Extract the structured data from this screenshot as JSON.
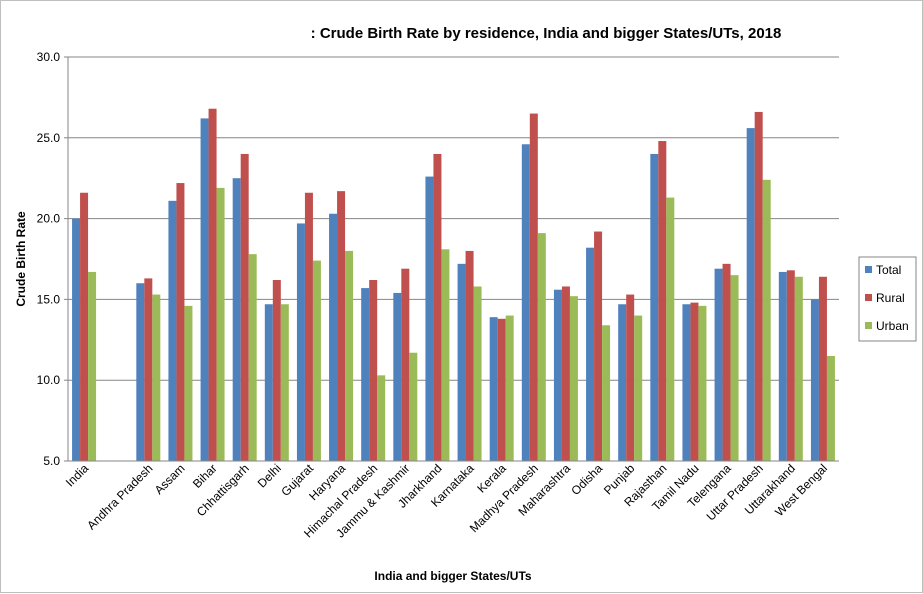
{
  "chart_data": {
    "type": "bar",
    "title": ": Crude Birth Rate by residence, India and bigger States/UTs, 2018",
    "xlabel": "India and bigger States/UTs",
    "ylabel": "Crude Birth Rate",
    "ylim": [
      5.0,
      30.0
    ],
    "yticks": [
      "5.0",
      "10.0",
      "15.0",
      "20.0",
      "25.0",
      "30.0"
    ],
    "grid": "horizontal",
    "legend_position": "right",
    "categories": [
      "India",
      "",
      "Andhra Pradesh",
      "Assam",
      "Bihar",
      "Chhattisgarh",
      "Delhi",
      "Gujarat",
      "Haryana",
      "Himachal Pradesh",
      "Jammu & Kashmir",
      "Jharkhand",
      "Karnataka",
      "Kerala",
      "Madhya Pradesh",
      "Maharashtra",
      "Odisha",
      "Punjab",
      "Rajasthan",
      "Tamil Nadu",
      "Telengana",
      "Uttar Pradesh",
      "Uttarakhand",
      "West Bengal"
    ],
    "series": [
      {
        "name": "Total",
        "color": "#4f81bd",
        "values": [
          20.0,
          null,
          16.0,
          21.1,
          26.2,
          22.5,
          14.7,
          19.7,
          20.3,
          15.7,
          15.4,
          22.6,
          17.2,
          13.9,
          24.6,
          15.6,
          18.2,
          14.7,
          24.0,
          14.7,
          16.9,
          25.6,
          16.7,
          15.0
        ]
      },
      {
        "name": "Rural",
        "color": "#c0504d",
        "values": [
          21.6,
          null,
          16.3,
          22.2,
          26.8,
          24.0,
          16.2,
          21.6,
          21.7,
          16.2,
          16.9,
          24.0,
          18.0,
          13.8,
          26.5,
          15.8,
          19.2,
          15.3,
          24.8,
          14.8,
          17.2,
          26.6,
          16.8,
          16.4
        ]
      },
      {
        "name": "Urban",
        "color": "#9bbb59",
        "values": [
          16.7,
          null,
          15.3,
          14.6,
          21.9,
          17.8,
          14.7,
          17.4,
          18.0,
          10.3,
          11.7,
          18.1,
          15.8,
          14.0,
          19.1,
          15.2,
          13.4,
          14.0,
          21.3,
          14.6,
          16.5,
          22.4,
          16.4,
          11.5
        ]
      }
    ]
  }
}
